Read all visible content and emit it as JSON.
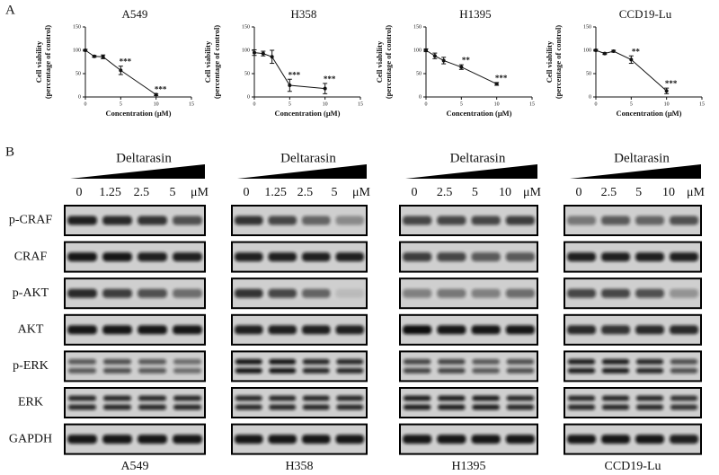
{
  "panel_labels": [
    "A",
    "B"
  ],
  "chart_data": [
    {
      "type": "line",
      "title": "A549",
      "xlabel": "Concentration (μM)",
      "ylabel": "Cell viability (percentage of control)",
      "x": [
        0,
        1.25,
        2.5,
        5,
        10
      ],
      "values": [
        100,
        87,
        86,
        57,
        5
      ],
      "errors": [
        2,
        2,
        4,
        9,
        2
      ],
      "significance": [
        null,
        null,
        null,
        "***",
        "***"
      ],
      "xlim": [
        0,
        15
      ],
      "xticks": [
        0,
        5,
        10,
        15
      ],
      "ylim": [
        0,
        150
      ],
      "yticks": [
        0,
        50,
        100,
        150
      ],
      "color": "#111111"
    },
    {
      "type": "line",
      "title": "H358",
      "xlabel": "Concentration (μM)",
      "ylabel": "Cell viability (percentage of control)",
      "x": [
        0,
        1.25,
        2.5,
        5,
        10
      ],
      "values": [
        95,
        93,
        86,
        25,
        18
      ],
      "errors": [
        6,
        5,
        14,
        13,
        11
      ],
      "significance": [
        null,
        null,
        null,
        "***",
        "***"
      ],
      "xlim": [
        0,
        15
      ],
      "xticks": [
        0,
        5,
        10,
        15
      ],
      "ylim": [
        0,
        150
      ],
      "yticks": [
        0,
        50,
        100,
        150
      ],
      "color": "#111111"
    },
    {
      "type": "line",
      "title": "H1395",
      "xlabel": "Concentration (μM)",
      "ylabel": "Cell viability (percentage of control)",
      "x": [
        0,
        1.25,
        2.5,
        5,
        10
      ],
      "values": [
        100,
        88,
        78,
        64,
        28
      ],
      "errors": [
        3,
        6,
        7,
        5,
        3
      ],
      "significance": [
        null,
        null,
        null,
        "**",
        "***"
      ],
      "xlim": [
        0,
        15
      ],
      "xticks": [
        0,
        5,
        10,
        15
      ],
      "ylim": [
        0,
        150
      ],
      "yticks": [
        0,
        50,
        100,
        150
      ],
      "color": "#111111"
    },
    {
      "type": "line",
      "title": "CCD19-Lu",
      "xlabel": "Concentration (μM)",
      "ylabel": "Cell viability (percentage of control)",
      "x": [
        0,
        1.25,
        2.5,
        5,
        10
      ],
      "values": [
        100,
        93,
        98,
        80,
        13
      ],
      "errors": [
        2,
        2,
        2,
        8,
        6
      ],
      "significance": [
        null,
        null,
        null,
        "**",
        "***"
      ],
      "xlim": [
        0,
        15
      ],
      "xticks": [
        0,
        5,
        10,
        15
      ],
      "ylim": [
        0,
        150
      ],
      "yticks": [
        0,
        50,
        100,
        150
      ],
      "color": "#111111"
    }
  ],
  "blots": {
    "treatment": "Deltarasin",
    "unit": "μM",
    "rows": [
      "p-CRAF",
      "CRAF",
      "p-AKT",
      "AKT",
      "p-ERK",
      "ERK",
      "GAPDH"
    ],
    "panels": [
      {
        "cell_line": "A549",
        "doses": [
          "0",
          "1.25",
          "2.5",
          "5"
        ]
      },
      {
        "cell_line": "H358",
        "doses": [
          "0",
          "1.25",
          "2.5",
          "5"
        ]
      },
      {
        "cell_line": "H1395",
        "doses": [
          "0",
          "2.5",
          "5",
          "10"
        ]
      },
      {
        "cell_line": "CCD19-Lu",
        "doses": [
          "0",
          "2.5",
          "5",
          "10"
        ]
      }
    ]
  }
}
